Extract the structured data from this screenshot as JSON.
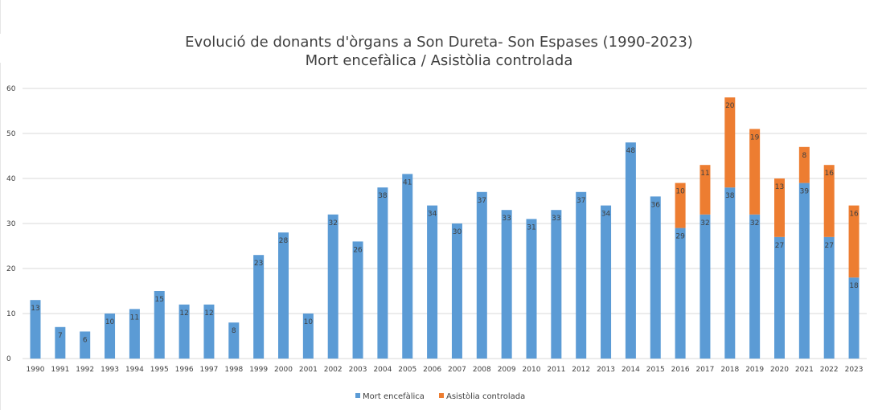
{
  "chart_data": {
    "type": "bar",
    "stacked": true,
    "title": "Evolució de donants d'òrgans a Son Dureta- Son Espases (1990-2023)",
    "subtitle": "Mort encefàlica / Asistòlia controlada",
    "xlabel": "",
    "ylabel": "",
    "ylim": [
      0,
      60
    ],
    "yticks": [
      0,
      10,
      20,
      30,
      40,
      50,
      60
    ],
    "grid": true,
    "legend_position": "bottom",
    "categories": [
      "1990",
      "1991",
      "1992",
      "1993",
      "1994",
      "1995",
      "1996",
      "1997",
      "1998",
      "1999",
      "2000",
      "2001",
      "2002",
      "2003",
      "2004",
      "2005",
      "2006",
      "2007",
      "2008",
      "2009",
      "2010",
      "2011",
      "2012",
      "2013",
      "2014",
      "2015",
      "2016",
      "2017",
      "2018",
      "2019",
      "2020",
      "2021",
      "2022",
      "2023"
    ],
    "series": [
      {
        "name": "Mort encefàlica",
        "color": "#5B9BD5",
        "values": [
          13,
          7,
          6,
          10,
          11,
          15,
          12,
          12,
          8,
          23,
          28,
          10,
          32,
          26,
          38,
          41,
          34,
          30,
          37,
          33,
          31,
          33,
          37,
          34,
          48,
          36,
          29,
          32,
          38,
          32,
          27,
          39,
          27,
          18
        ]
      },
      {
        "name": "Asistòlia controlada",
        "color": "#ED7D31",
        "values": [
          null,
          null,
          null,
          null,
          null,
          null,
          null,
          null,
          null,
          null,
          null,
          null,
          null,
          null,
          null,
          null,
          null,
          null,
          null,
          null,
          null,
          null,
          null,
          null,
          null,
          null,
          10,
          11,
          20,
          19,
          13,
          8,
          16,
          16
        ]
      }
    ]
  }
}
